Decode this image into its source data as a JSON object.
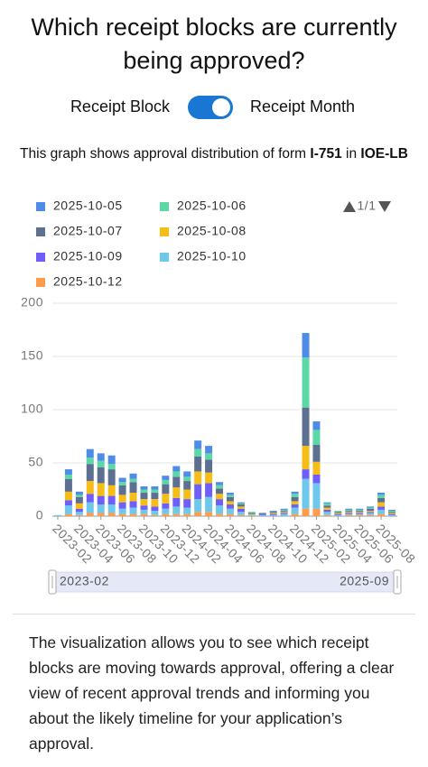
{
  "header": {
    "title": "Which receipt blocks are currently being approved?"
  },
  "toggle": {
    "left": "Receipt Block",
    "right": "Receipt Month",
    "on": true
  },
  "caption": {
    "parts": [
      "This graph shows approval distribution of form ",
      "I-751",
      " in ",
      "IOE-LB"
    ]
  },
  "chart_data": {
    "type": "bar",
    "stacked": true,
    "legend_page": "1/1",
    "categories": [
      "2023-02",
      null,
      "2023-04",
      null,
      "2023-06",
      null,
      "2023-08",
      null,
      "2023-10",
      null,
      "2023-12",
      null,
      "2024-02",
      null,
      "2024-04",
      null,
      "2024-06",
      null,
      "2024-08",
      null,
      "2024-10",
      null,
      "2024-12",
      null,
      "2025-02",
      null,
      "2025-04",
      null,
      "2025-06",
      null,
      "2025-08",
      null
    ],
    "series": [
      {
        "name": "2025-10-05",
        "color": "#4e8ce8",
        "values": [
          0,
          5,
          3,
          8,
          7,
          8,
          4,
          5,
          3,
          3,
          4,
          5,
          5,
          8,
          7,
          3,
          2,
          1,
          0,
          0,
          1,
          1,
          2,
          23,
          8,
          1,
          0,
          1,
          1,
          1,
          2,
          1
        ]
      },
      {
        "name": "2025-10-06",
        "color": "#5ad8a6",
        "values": [
          0,
          4,
          2,
          6,
          6,
          5,
          3,
          3,
          3,
          3,
          4,
          5,
          4,
          7,
          6,
          3,
          2,
          1,
          1,
          0,
          0,
          1,
          3,
          47,
          14,
          2,
          1,
          1,
          1,
          1,
          3,
          1
        ]
      },
      {
        "name": "2025-10-07",
        "color": "#5d7092",
        "values": [
          0,
          12,
          6,
          16,
          15,
          15,
          9,
          10,
          6,
          6,
          9,
          10,
          8,
          14,
          12,
          5,
          4,
          2,
          1,
          1,
          1,
          1,
          4,
          36,
          16,
          2,
          1,
          1,
          1,
          2,
          4,
          1
        ]
      },
      {
        "name": "2025-10-08",
        "color": "#f6bd16",
        "values": [
          0,
          8,
          5,
          12,
          12,
          10,
          7,
          8,
          6,
          7,
          9,
          10,
          9,
          12,
          10,
          5,
          3,
          2,
          1,
          0,
          1,
          1,
          3,
          22,
          12,
          2,
          1,
          1,
          1,
          1,
          4,
          1
        ]
      },
      {
        "name": "2025-10-09",
        "color": "#6f5ef9",
        "values": [
          0,
          5,
          3,
          8,
          8,
          8,
          6,
          6,
          4,
          4,
          5,
          8,
          8,
          14,
          13,
          6,
          4,
          3,
          0,
          1,
          1,
          1,
          3,
          9,
          8,
          2,
          1,
          1,
          1,
          1,
          3,
          1
        ]
      },
      {
        "name": "2025-10-10",
        "color": "#6dc8ec",
        "values": [
          1,
          8,
          3,
          10,
          8,
          8,
          5,
          6,
          4,
          4,
          5,
          7,
          6,
          12,
          14,
          8,
          5,
          3,
          1,
          1,
          1,
          2,
          6,
          28,
          24,
          3,
          1,
          1,
          1,
          2,
          4,
          1
        ]
      },
      {
        "name": "2025-10-12",
        "color": "#ff9d4d",
        "values": [
          0,
          2,
          1,
          3,
          3,
          3,
          2,
          2,
          2,
          1,
          2,
          2,
          2,
          4,
          4,
          2,
          2,
          1,
          0,
          0,
          0,
          0,
          2,
          7,
          7,
          1,
          0,
          1,
          1,
          1,
          2,
          0
        ]
      }
    ],
    "ylim": [
      0,
      200
    ],
    "yticks": [
      0,
      50,
      100,
      150,
      200
    ],
    "grid": true,
    "zoom_start": "2023-02",
    "zoom_end": "2025-09"
  },
  "description": {
    "text": "The visualization allows you to see which receipt blocks are moving towards approval, offering a clear view of recent approval trends and informing you about the likely timeline for your application’s approval."
  }
}
